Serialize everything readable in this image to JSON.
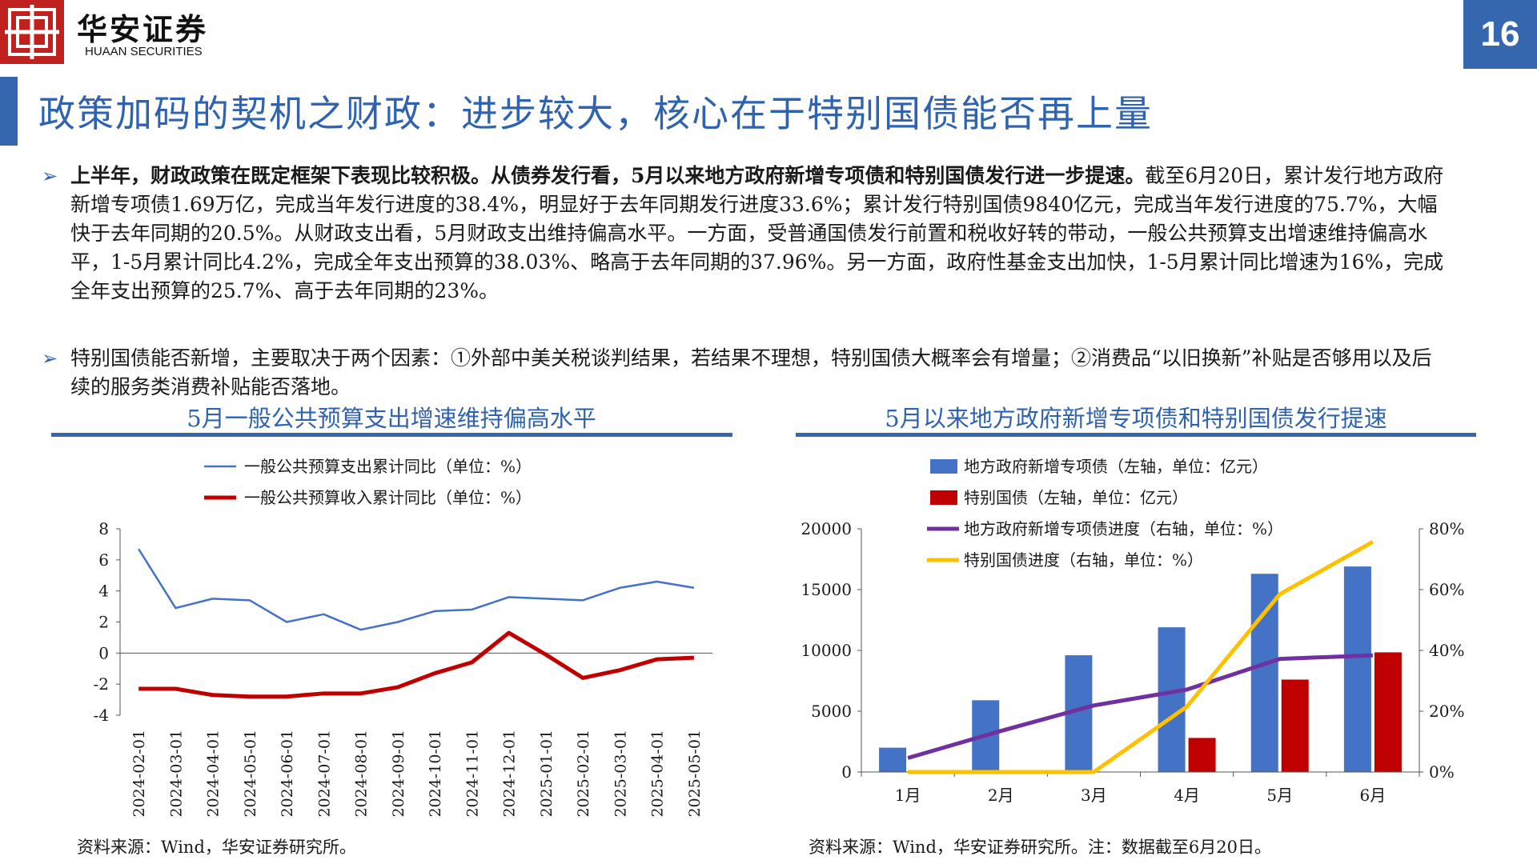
{
  "header": {
    "logo_cn": "华安证券",
    "logo_en": "HUAAN SECURITIES",
    "page_number": "16",
    "brand_color": "#c0211e",
    "accent_color": "#3567ae"
  },
  "title": "政策加码的契机之财政：进步较大，核心在于特别国债能否再上量",
  "bullets": [
    {
      "bold": "上半年，财政政策在既定框架下表现比较积极。从债券发行看，5月以来地方政府新增专项债和特别国债发行进一步提速。",
      "text": "截至6月20日，累计发行地方政府新增专项债1.69万亿，完成当年发行进度的38.4%，明显好于去年同期发行进度33.6%；累计发行特别国债9840亿元，完成当年发行进度的75.7%，大幅快于去年同期的20.5%。从财政支出看，5月财政支出维持偏高水平。一方面，受普通国债发行前置和税收好转的带动，一般公共预算支出增速维持偏高水平，1-5月累计同比4.2%，完成全年支出预算的38.03%、略高于去年同期的37.96%。另一方面，政府性基金支出加快，1-5月累计同比增速为16%，完成全年支出预算的25.7%、高于去年同期的23%。"
    },
    {
      "bold": "",
      "text": "特别国债能否新增，主要取决于两个因素：①外部中美关税谈判结果，若结果不理想，特别国债大概率会有增量；②消费品“以旧换新”补贴是否够用以及后续的服务类消费补贴能否落地。"
    }
  ],
  "left_chart": {
    "heading": "5月一般公共预算支出增速维持偏高水平",
    "source": "资料来源：Wind，华安证券研究所。",
    "chart_data": {
      "type": "line",
      "x": [
        "2024-02-01",
        "2024-03-01",
        "2024-04-01",
        "2024-05-01",
        "2024-06-01",
        "2024-07-01",
        "2024-08-01",
        "2024-09-01",
        "2024-10-01",
        "2024-11-01",
        "2024-12-01",
        "2025-01-01",
        "2025-02-01",
        "2025-03-01",
        "2025-04-01",
        "2025-05-01"
      ],
      "series": [
        {
          "name": "一般公共预算支出累计同比（单位：%）",
          "color": "#4472c4",
          "width": 2.5,
          "values": [
            6.7,
            2.9,
            3.5,
            3.4,
            2.0,
            2.5,
            1.5,
            2.0,
            2.7,
            2.8,
            3.6,
            3.5,
            3.4,
            4.2,
            4.6,
            4.2
          ]
        },
        {
          "name": "一般公共预算收入累计同比（单位：%）",
          "color": "#c00000",
          "width": 5,
          "values": [
            -2.3,
            -2.3,
            -2.7,
            -2.8,
            -2.8,
            -2.6,
            -2.6,
            -2.2,
            -1.3,
            -0.6,
            1.3,
            -0.1,
            -1.6,
            -1.1,
            -0.4,
            -0.3
          ]
        }
      ],
      "yticks": [
        "8",
        "6",
        "4",
        "2",
        "0",
        "-2",
        "-4"
      ],
      "ylim": [
        -4,
        8
      ]
    }
  },
  "right_chart": {
    "heading": "5月以来地方政府新增专项债和特别国债发行提速",
    "source": "资料来源：Wind，华安证券研究所。注：数据截至6月20日。",
    "chart_data": {
      "type": "bar",
      "categories": [
        "1月",
        "2月",
        "3月",
        "4月",
        "5月",
        "6月"
      ],
      "series": [
        {
          "name": "地方政府新增专项债（左轴，单位：亿元）",
          "color": "#4472c4",
          "kind": "bar",
          "values": [
            2000,
            5900,
            9600,
            11900,
            16300,
            16900
          ]
        },
        {
          "name": "特别国债（左轴，单位：亿元）",
          "color": "#c00000",
          "kind": "bar",
          "values": [
            0,
            0,
            0,
            2800,
            7600,
            9840
          ]
        },
        {
          "name": "地方政府新增专项债进度（右轴，单位：%）",
          "color": "#7030a0",
          "kind": "line",
          "values": [
            4.6,
            13.5,
            21.9,
            27.1,
            37.2,
            38.4
          ]
        },
        {
          "name": "特别国债进度（右轴，单位：%）",
          "color": "#ffc000",
          "kind": "line",
          "values": [
            0,
            0,
            0,
            21.5,
            58.5,
            75.7
          ]
        }
      ],
      "yticks_left": [
        "20000",
        "15000",
        "10000",
        "5000",
        "0"
      ],
      "yticks_right": [
        "80%",
        "60%",
        "40%",
        "20%",
        "0%"
      ],
      "ylim_left": [
        0,
        20000
      ],
      "ylim_right": [
        0,
        80
      ]
    }
  }
}
